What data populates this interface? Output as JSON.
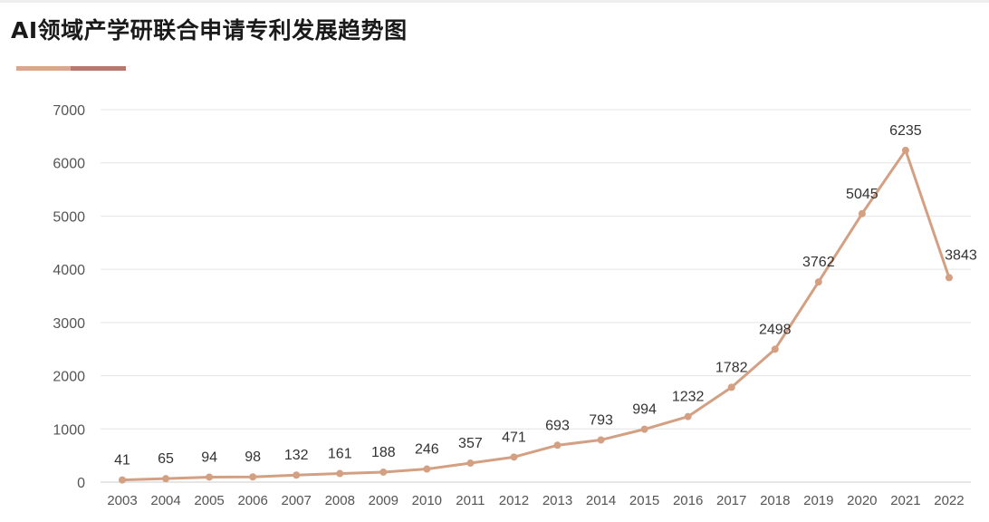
{
  "title": "AI领域产学研联合申请专利发展趋势图",
  "colors": {
    "line": "#d4a083",
    "accent_a": "#d8a88c",
    "accent_b": "#b57a6c",
    "grid": "#e4e4e4",
    "axis_text": "#555555",
    "label_text": "#333333"
  },
  "chart_data": {
    "type": "line",
    "title": "AI领域产学研联合申请专利发展趋势图",
    "xlabel": "",
    "ylabel": "",
    "x": [
      "2003",
      "2004",
      "2005",
      "2006",
      "2007",
      "2008",
      "2009",
      "2010",
      "2011",
      "2012",
      "2013",
      "2014",
      "2015",
      "2016",
      "2017",
      "2018",
      "2019",
      "2020",
      "2021",
      "2022"
    ],
    "values": [
      41,
      65,
      94,
      98,
      132,
      161,
      188,
      246,
      357,
      471,
      693,
      793,
      994,
      1232,
      1782,
      2498,
      3762,
      5045,
      6235,
      3843
    ],
    "ylim": [
      0,
      7000
    ],
    "yticks": [
      0,
      1000,
      2000,
      3000,
      4000,
      5000,
      6000,
      7000
    ],
    "grid": true,
    "legend": "none",
    "data_labels": true
  }
}
